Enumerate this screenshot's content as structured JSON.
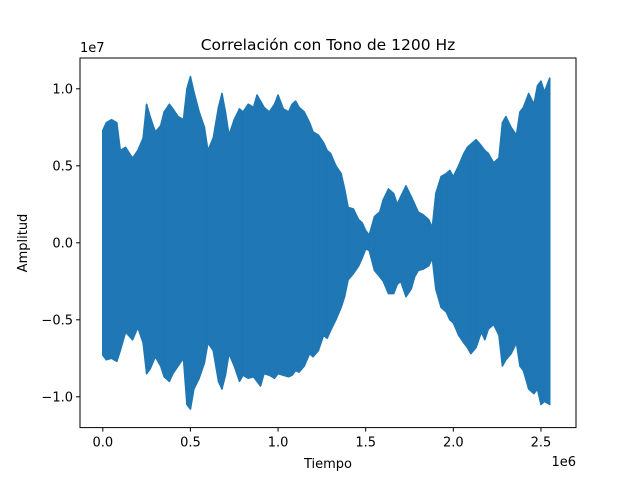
{
  "chart_data": {
    "type": "line",
    "title": "Correlación con Tono de 1200 Hz",
    "xlabel": "Tiempo",
    "ylabel": "Amplitud",
    "x_offset_text": "1e6",
    "y_offset_text": "1e7",
    "xlim": [
      -0.13,
      2.7
    ],
    "ylim": [
      -1.2,
      1.2
    ],
    "x_ticks": [
      0.0,
      0.5,
      1.0,
      1.5,
      2.0,
      2.5
    ],
    "x_tick_labels": [
      "0.0",
      "0.5",
      "1.0",
      "1.5",
      "2.0",
      "2.5"
    ],
    "y_ticks": [
      -1.0,
      -0.5,
      0.0,
      0.5,
      1.0
    ],
    "y_tick_labels": [
      "−1.0",
      "−0.5",
      "0.0",
      "0.5",
      "1.0"
    ],
    "grid": false,
    "series": [
      {
        "color": "#1f77b4",
        "x": [
          0.0,
          0.02,
          0.05,
          0.08,
          0.1,
          0.13,
          0.17,
          0.2,
          0.23,
          0.25,
          0.27,
          0.3,
          0.33,
          0.35,
          0.38,
          0.4,
          0.43,
          0.46,
          0.48,
          0.5,
          0.52,
          0.55,
          0.58,
          0.6,
          0.63,
          0.66,
          0.68,
          0.7,
          0.72,
          0.75,
          0.78,
          0.8,
          0.83,
          0.86,
          0.88,
          0.9,
          0.92,
          0.95,
          0.98,
          1.0,
          1.03,
          1.06,
          1.08,
          1.1,
          1.12,
          1.15,
          1.18,
          1.2,
          1.23,
          1.26,
          1.28,
          1.3,
          1.33,
          1.36,
          1.38,
          1.4,
          1.43,
          1.46,
          1.48,
          1.5,
          1.52,
          1.55,
          1.58,
          1.6,
          1.63,
          1.66,
          1.68,
          1.7,
          1.73,
          1.76,
          1.78,
          1.8,
          1.83,
          1.86,
          1.88,
          1.9,
          1.93,
          1.96,
          1.98,
          2.0,
          2.03,
          2.06,
          2.08,
          2.1,
          2.13,
          2.16,
          2.18,
          2.2,
          2.23,
          2.26,
          2.28,
          2.3,
          2.33,
          2.36,
          2.38,
          2.4,
          2.43,
          2.46,
          2.48,
          2.5,
          2.52,
          2.55
        ],
        "upper": [
          0.73,
          0.78,
          0.8,
          0.78,
          0.6,
          0.62,
          0.55,
          0.6,
          0.68,
          0.9,
          0.82,
          0.72,
          0.76,
          0.85,
          0.9,
          0.87,
          0.82,
          0.8,
          1.0,
          1.08,
          0.98,
          0.85,
          0.75,
          0.6,
          0.68,
          0.88,
          0.97,
          0.85,
          0.7,
          0.8,
          0.87,
          0.85,
          0.9,
          0.88,
          0.96,
          0.92,
          0.88,
          0.85,
          0.9,
          0.96,
          0.87,
          0.85,
          0.9,
          0.92,
          0.88,
          0.85,
          0.78,
          0.72,
          0.7,
          0.65,
          0.6,
          0.58,
          0.5,
          0.45,
          0.35,
          0.23,
          0.22,
          0.15,
          0.13,
          0.08,
          0.05,
          0.17,
          0.2,
          0.28,
          0.35,
          0.32,
          0.25,
          0.3,
          0.37,
          0.3,
          0.25,
          0.2,
          0.18,
          0.15,
          0.1,
          0.32,
          0.43,
          0.45,
          0.47,
          0.43,
          0.5,
          0.58,
          0.62,
          0.64,
          0.67,
          0.63,
          0.6,
          0.58,
          0.52,
          0.55,
          0.78,
          0.82,
          0.75,
          0.7,
          0.85,
          0.88,
          0.97,
          0.9,
          1.02,
          1.05,
          0.98,
          1.07
        ],
        "lower": [
          -0.73,
          -0.76,
          -0.75,
          -0.77,
          -0.7,
          -0.58,
          -0.63,
          -0.55,
          -0.65,
          -0.85,
          -0.82,
          -0.74,
          -0.8,
          -0.87,
          -0.9,
          -0.85,
          -0.8,
          -0.75,
          -1.05,
          -1.08,
          -0.95,
          -0.88,
          -0.78,
          -0.65,
          -0.7,
          -0.9,
          -0.95,
          -0.86,
          -0.72,
          -0.8,
          -0.9,
          -0.86,
          -0.88,
          -0.87,
          -0.9,
          -0.93,
          -0.85,
          -0.86,
          -0.88,
          -0.85,
          -0.86,
          -0.87,
          -0.86,
          -0.83,
          -0.84,
          -0.8,
          -0.72,
          -0.74,
          -0.7,
          -0.6,
          -0.62,
          -0.57,
          -0.5,
          -0.42,
          -0.35,
          -0.24,
          -0.2,
          -0.15,
          -0.1,
          -0.04,
          -0.05,
          -0.18,
          -0.22,
          -0.25,
          -0.33,
          -0.33,
          -0.27,
          -0.25,
          -0.35,
          -0.3,
          -0.22,
          -0.18,
          -0.17,
          -0.15,
          -0.1,
          -0.3,
          -0.42,
          -0.45,
          -0.5,
          -0.52,
          -0.6,
          -0.65,
          -0.68,
          -0.72,
          -0.68,
          -0.58,
          -0.63,
          -0.56,
          -0.53,
          -0.6,
          -0.8,
          -0.76,
          -0.72,
          -0.65,
          -0.8,
          -0.83,
          -0.95,
          -0.98,
          -0.95,
          -1.05,
          -1.03,
          -1.05
        ]
      }
    ]
  }
}
